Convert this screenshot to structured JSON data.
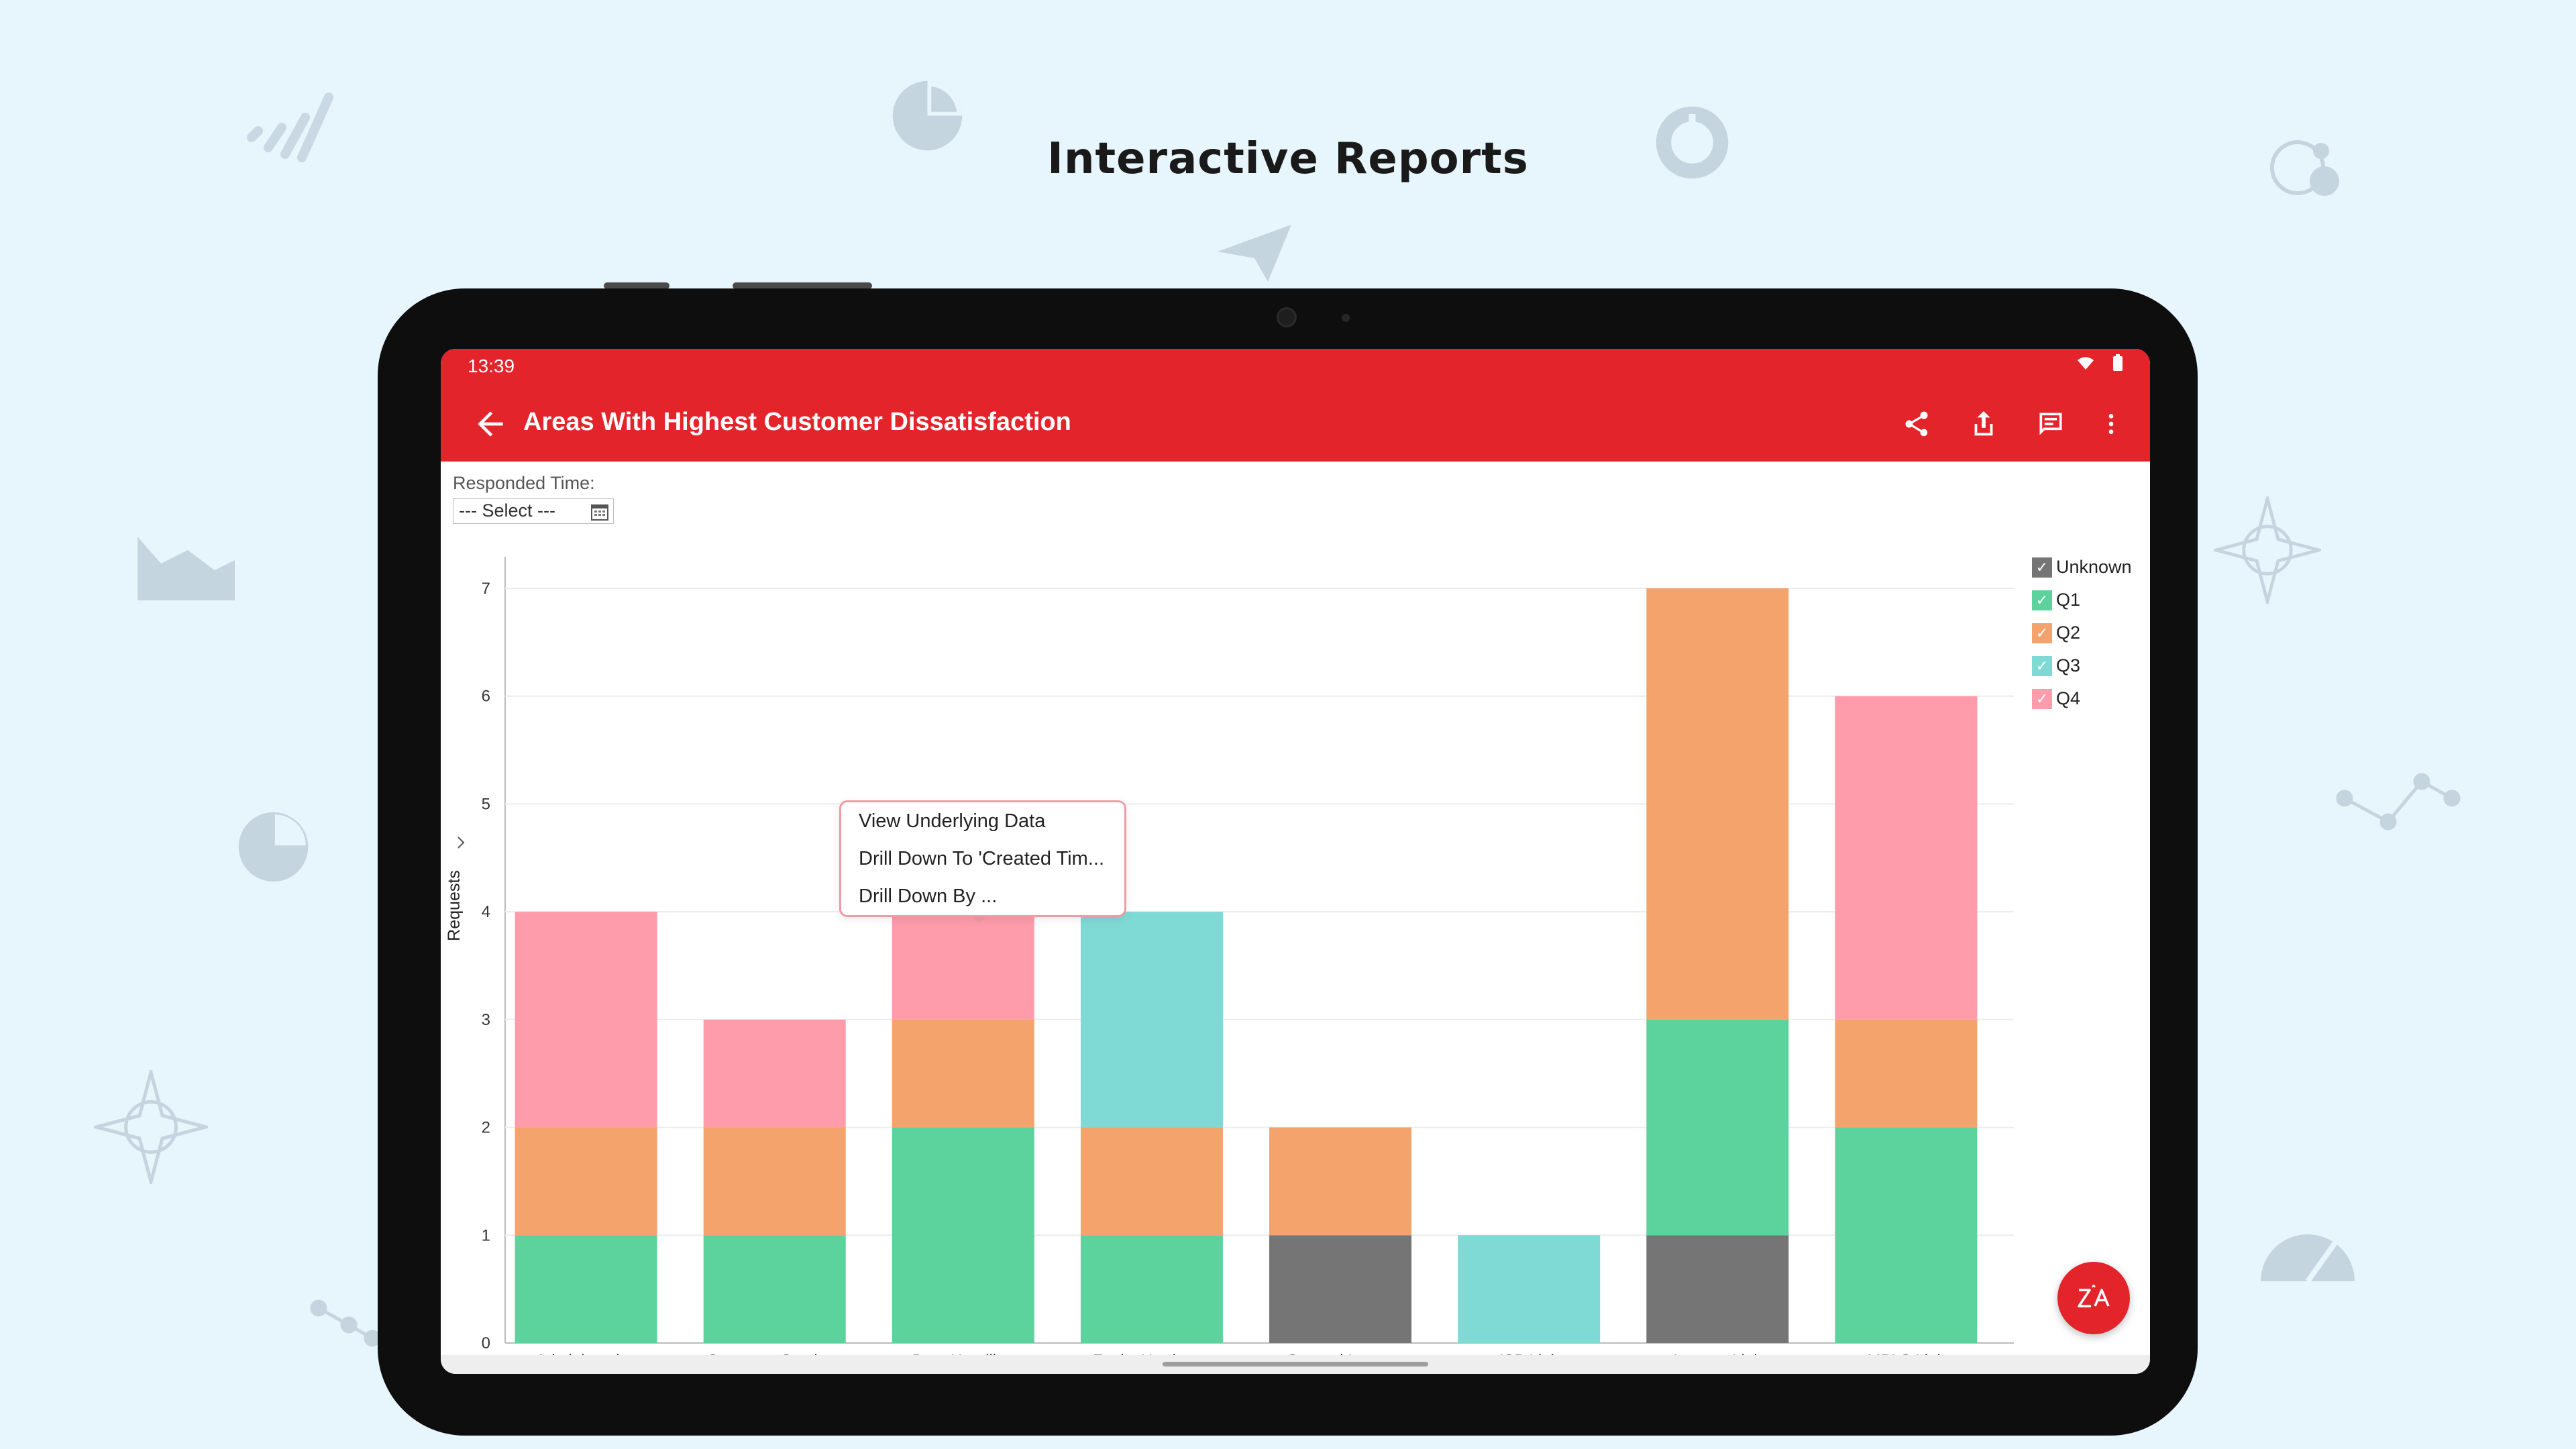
{
  "headline": "Interactive Reports",
  "colors": {
    "brand_red": "#e3242b",
    "unknown": "#757575",
    "q1": "#5cd39d",
    "q2": "#f4a36d",
    "q3": "#7fdad6",
    "q4": "#fe9cab",
    "menu_border": "#f29aa8"
  },
  "status_bar": {
    "time": "13:39",
    "icons": [
      "wifi-icon",
      "battery-icon"
    ]
  },
  "app_bar": {
    "title": "Areas With Highest Customer Dissatisfaction",
    "back_icon": "arrow-left-icon",
    "actions": [
      "share-icon",
      "export-icon",
      "comment-icon",
      "more-vert-icon"
    ]
  },
  "filter": {
    "label": "Responded Time:",
    "value": "--- Select ---",
    "icon": "calendar-icon"
  },
  "context_menu": {
    "items": [
      "View Underlying Data",
      "Drill Down To 'Created Tim...",
      "Drill Down By ..."
    ]
  },
  "fab": {
    "icon": "zia-assistant-icon"
  },
  "chart_data": {
    "type": "bar",
    "stacked": true,
    "title": "",
    "xlabel": "",
    "ylabel": "Requests",
    "ylim": [
      0,
      7
    ],
    "yticks": [
      "0",
      "1",
      "2",
      "3",
      "4",
      "5",
      "6",
      "7"
    ],
    "grid": true,
    "legend_position": "top-right",
    "categories": [
      "Administrative",
      "Customer Services",
      "Data Handling",
      "Faulty Hardware",
      "General Issues",
      "ISP Link",
      "Internet Link",
      "MPLS Link"
    ],
    "series": [
      {
        "name": "Unknown",
        "color": "#757575",
        "values": [
          0,
          0,
          0,
          0,
          1,
          0,
          1,
          0
        ]
      },
      {
        "name": "Q1",
        "color": "#5cd39d",
        "values": [
          1,
          1,
          2,
          1,
          0,
          0,
          2,
          2
        ]
      },
      {
        "name": "Q2",
        "color": "#f4a36d",
        "values": [
          1,
          1,
          1,
          1,
          1,
          0,
          4,
          1
        ]
      },
      {
        "name": "Q3",
        "color": "#7fdad6",
        "values": [
          0,
          0,
          0,
          2,
          0,
          1,
          0,
          0
        ]
      },
      {
        "name": "Q4",
        "color": "#fe9cab",
        "values": [
          2,
          1,
          1,
          0,
          0,
          0,
          0,
          3
        ]
      }
    ]
  }
}
